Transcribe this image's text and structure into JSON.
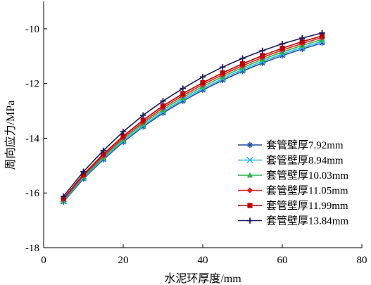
{
  "chart_data": {
    "type": "line",
    "xlabel": "水泥环厚度/mm",
    "ylabel": "周向应力/MPa",
    "xlim": [
      0,
      80
    ],
    "ylim": [
      -18,
      -9
    ],
    "xticks": [
      0,
      20,
      40,
      60,
      80
    ],
    "yticks": [
      -18,
      -16,
      -14,
      -12,
      -10
    ],
    "xtick_labels": [
      "0",
      "20",
      "40",
      "60",
      "80"
    ],
    "ytick_labels": [
      "-18",
      "-16",
      "-14",
      "-12",
      "-10"
    ],
    "grid": false,
    "legend_position": "right",
    "x": [
      5,
      10,
      15,
      20,
      25,
      30,
      35,
      40,
      45,
      50,
      55,
      60,
      65,
      70
    ],
    "series": [
      {
        "name": "套管壁厚7.92mm",
        "color": "#1f4e9a",
        "marker": "asterisk",
        "values": [
          -16.32,
          -15.48,
          -14.78,
          -14.14,
          -13.58,
          -13.08,
          -12.64,
          -12.24,
          -11.88,
          -11.55,
          -11.25,
          -10.98,
          -10.74,
          -10.52
        ]
      },
      {
        "name": "套管壁厚8.94mm",
        "color": "#2eb8e6",
        "marker": "x",
        "values": [
          -16.29,
          -15.44,
          -14.74,
          -14.1,
          -13.54,
          -13.03,
          -12.58,
          -12.18,
          -11.82,
          -11.49,
          -11.19,
          -10.92,
          -10.68,
          -10.46
        ]
      },
      {
        "name": "套管壁厚10.03mm",
        "color": "#2db34a",
        "marker": "triangle",
        "values": [
          -16.26,
          -15.4,
          -14.69,
          -14.04,
          -13.47,
          -12.96,
          -12.51,
          -12.11,
          -11.75,
          -11.42,
          -11.12,
          -10.85,
          -10.61,
          -10.39
        ]
      },
      {
        "name": "套管壁厚11.05mm",
        "color": "#e02020",
        "marker": "diamond",
        "values": [
          -16.23,
          -15.36,
          -14.64,
          -13.98,
          -13.41,
          -12.89,
          -12.44,
          -12.04,
          -11.68,
          -11.35,
          -11.05,
          -10.78,
          -10.54,
          -10.32
        ]
      },
      {
        "name": "套管壁厚11.99mm",
        "color": "#c00000",
        "marker": "square",
        "values": [
          -16.2,
          -15.32,
          -14.58,
          -13.92,
          -13.34,
          -12.82,
          -12.37,
          -11.97,
          -11.61,
          -11.28,
          -10.98,
          -10.71,
          -10.47,
          -10.26
        ]
      },
      {
        "name": "套管壁厚13.84mm",
        "color": "#1a1a5e",
        "marker": "plus",
        "values": [
          -16.12,
          -15.22,
          -14.45,
          -13.76,
          -13.16,
          -12.64,
          -12.18,
          -11.76,
          -11.4,
          -11.08,
          -10.8,
          -10.55,
          -10.34,
          -10.15
        ]
      }
    ]
  }
}
